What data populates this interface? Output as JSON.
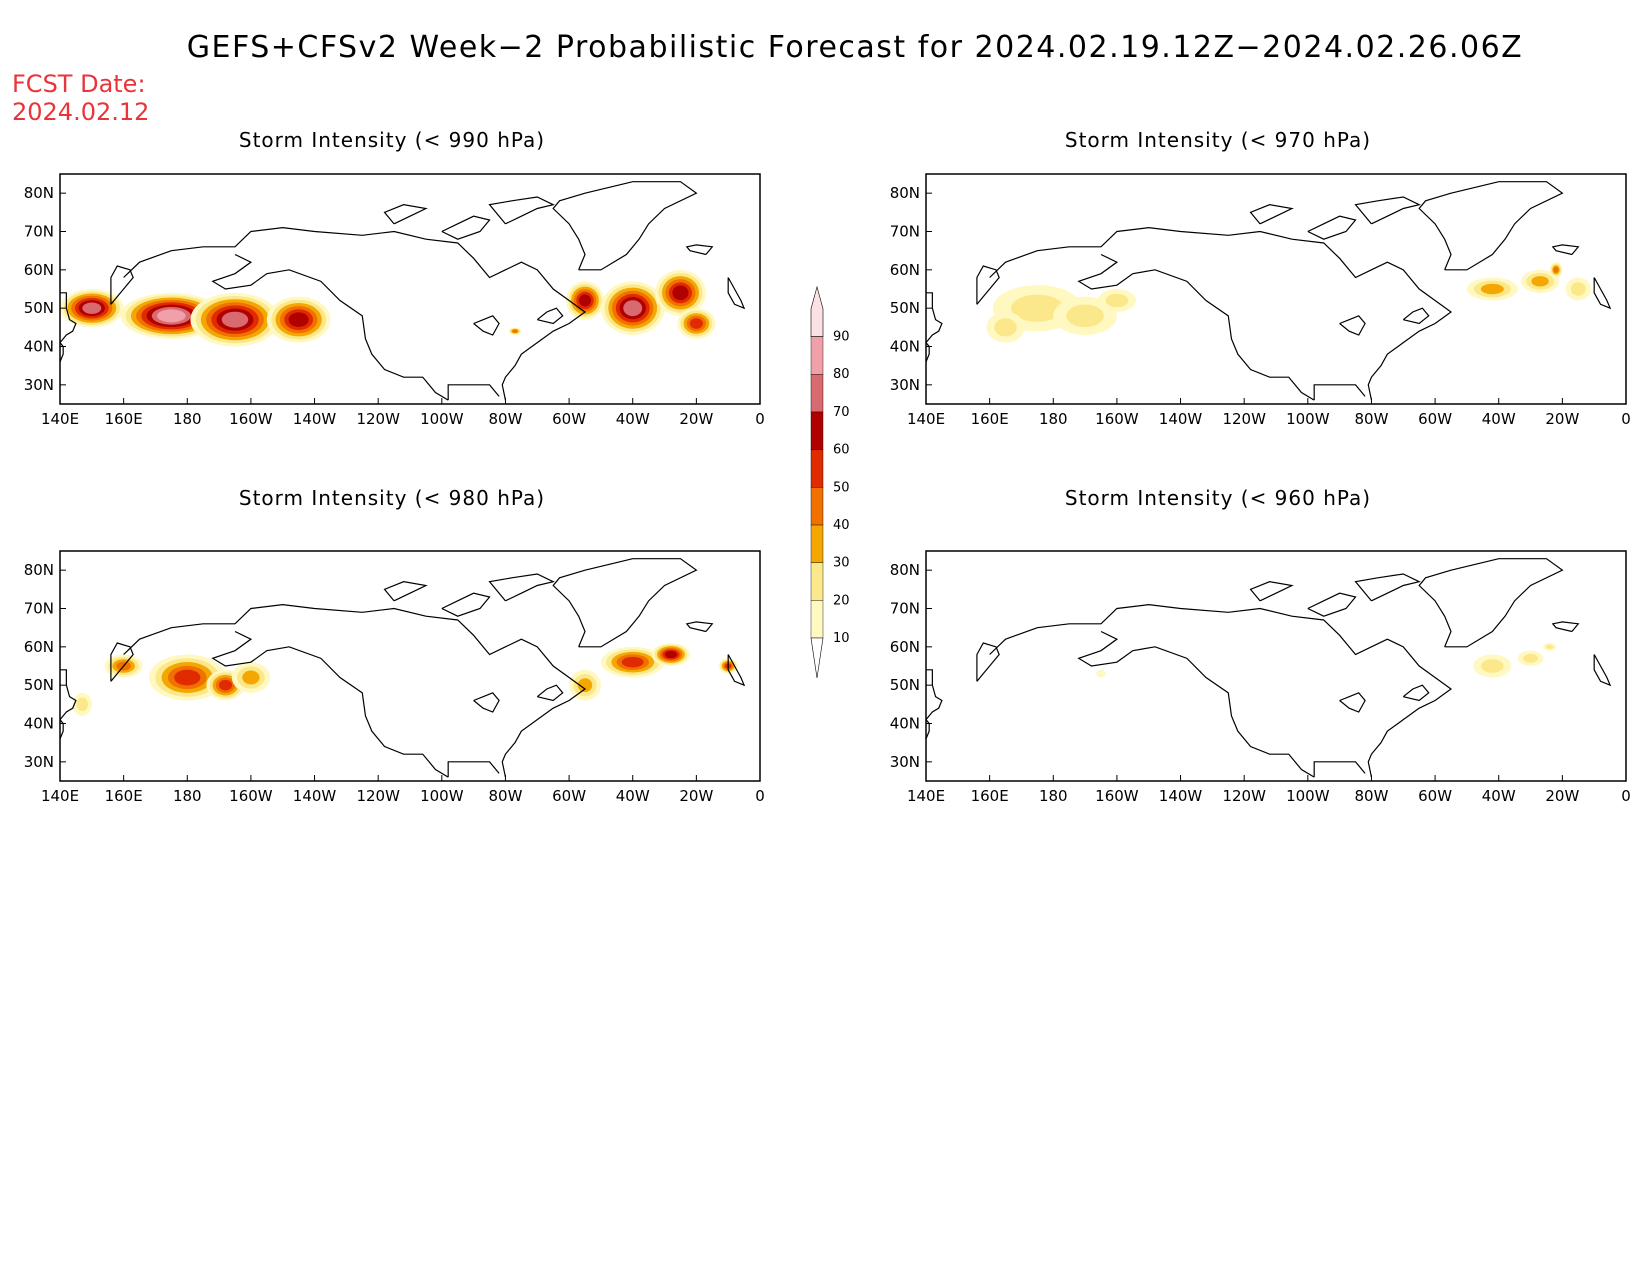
{
  "title": "GEFS+CFSv2 Week−2 Probabilistic Forecast for 2024.02.19.12Z−2024.02.26.06Z",
  "fcst_date_label": "FCST Date:",
  "fcst_date": "2024.02.12",
  "panels": [
    {
      "title": "Storm Intensity (< 990 hPa)"
    },
    {
      "title": "Storm Intensity (< 970 hPa)"
    },
    {
      "title": "Storm Intensity (< 980 hPa)"
    },
    {
      "title": "Storm Intensity (< 960 hPa)"
    }
  ],
  "x_ticks": [
    "140E",
    "160E",
    "180",
    "160W",
    "140W",
    "120W",
    "100W",
    "80W",
    "60W",
    "40W",
    "20W",
    "0"
  ],
  "y_ticks": [
    "80N",
    "70N",
    "60N",
    "50N",
    "40N",
    "30N"
  ],
  "colorbar": {
    "levels": [
      10,
      20,
      30,
      40,
      50,
      60,
      70,
      80,
      90
    ],
    "colors": [
      "#fff8c0",
      "#fbe88a",
      "#f4a700",
      "#f07000",
      "#e02a00",
      "#b00000",
      "#d86a70",
      "#f0a0a8",
      "#fbe0e4"
    ]
  },
  "fields": [
    {
      "name": "990",
      "blobs": [
        [
          175,
          48,
          16,
          6,
          8
        ],
        [
          150,
          50,
          10,
          5,
          7
        ],
        [
          195,
          47,
          14,
          7,
          7
        ],
        [
          215,
          47,
          10,
          6,
          6
        ],
        [
          320,
          50,
          10,
          7,
          7
        ],
        [
          335,
          54,
          8,
          6,
          6
        ],
        [
          305,
          52,
          6,
          5,
          6
        ],
        [
          283,
          44,
          2,
          1,
          4
        ],
        [
          340,
          46,
          6,
          4,
          5
        ]
      ]
    },
    {
      "name": "970",
      "blobs": [
        [
          175,
          50,
          14,
          6,
          2
        ],
        [
          165,
          45,
          6,
          4,
          2
        ],
        [
          190,
          48,
          10,
          5,
          2
        ],
        [
          200,
          52,
          6,
          3,
          2
        ],
        [
          318,
          55,
          8,
          3,
          3
        ],
        [
          333,
          57,
          6,
          3,
          3
        ],
        [
          338,
          60,
          2,
          2,
          4
        ],
        [
          345,
          55,
          4,
          3,
          2
        ]
      ]
    },
    {
      "name": "980",
      "blobs": [
        [
          180,
          52,
          12,
          6,
          5
        ],
        [
          192,
          50,
          6,
          4,
          5
        ],
        [
          160,
          55,
          6,
          3,
          4
        ],
        [
          200,
          52,
          6,
          4,
          3
        ],
        [
          320,
          56,
          10,
          4,
          5
        ],
        [
          332,
          58,
          6,
          3,
          6
        ],
        [
          350,
          55,
          3,
          2,
          5
        ],
        [
          305,
          50,
          5,
          4,
          3
        ],
        [
          147,
          45,
          3,
          3,
          2
        ]
      ]
    },
    {
      "name": "960",
      "blobs": [
        [
          318,
          55,
          6,
          3,
          2
        ],
        [
          330,
          57,
          4,
          2,
          2
        ],
        [
          336,
          60,
          2,
          1,
          2
        ],
        [
          195,
          53,
          1.5,
          1,
          1
        ]
      ]
    }
  ]
}
